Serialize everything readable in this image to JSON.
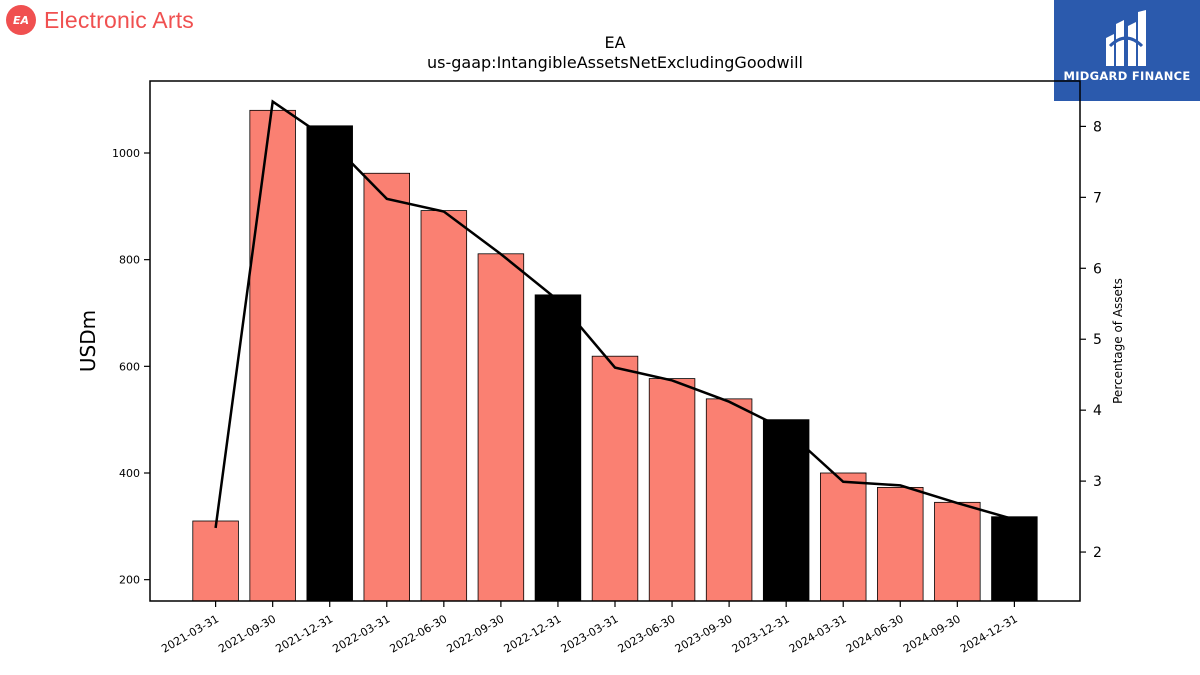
{
  "brand": {
    "logo_text": "EA",
    "name": "Electronic Arts",
    "logo_color": "#f05050"
  },
  "badge": {
    "text": "MIDGARD FINANCE",
    "bg_color": "#2b5aad"
  },
  "chart_data": {
    "type": "bar",
    "title": "EA",
    "subtitle": "us-gaap:IntangibleAssetsNetExcludingGoodwill",
    "ylabel": "USDm",
    "y2label": "Percentage of Assets",
    "categories": [
      "2021-03-31",
      "2021-09-30",
      "2021-12-31",
      "2022-03-31",
      "2022-06-30",
      "2022-09-30",
      "2022-12-31",
      "2023-03-31",
      "2023-06-30",
      "2023-09-30",
      "2023-12-31",
      "2024-03-31",
      "2024-06-30",
      "2024-09-30",
      "2024-12-31"
    ],
    "series": [
      {
        "type": "bar",
        "values": [
          310,
          1080,
          1051,
          962,
          892,
          811,
          734,
          619,
          577,
          539,
          500,
          400,
          373,
          345,
          318
        ]
      },
      {
        "type": "line",
        "axis": "right",
        "values": [
          2.34,
          8.35,
          7.8,
          6.98,
          6.8,
          6.2,
          5.55,
          4.6,
          4.42,
          4.12,
          3.72,
          2.99,
          2.94,
          2.69,
          2.46
        ]
      }
    ],
    "bar_colors": [
      "#fa8072",
      "#fa8072",
      "#000000",
      "#fa8072",
      "#fa8072",
      "#fa8072",
      "#000000",
      "#fa8072",
      "#fa8072",
      "#fa8072",
      "#000000",
      "#fa8072",
      "#fa8072",
      "#fa8072",
      "#000000"
    ],
    "line_color": "#000000",
    "ylim": [
      160,
      1135
    ],
    "y2lim": [
      1.31,
      8.64
    ],
    "yticks": [
      200,
      400,
      600,
      800,
      1000
    ],
    "y2ticks": [
      2,
      3,
      4,
      5,
      6,
      7,
      8
    ],
    "grid": false,
    "legend": "none"
  }
}
